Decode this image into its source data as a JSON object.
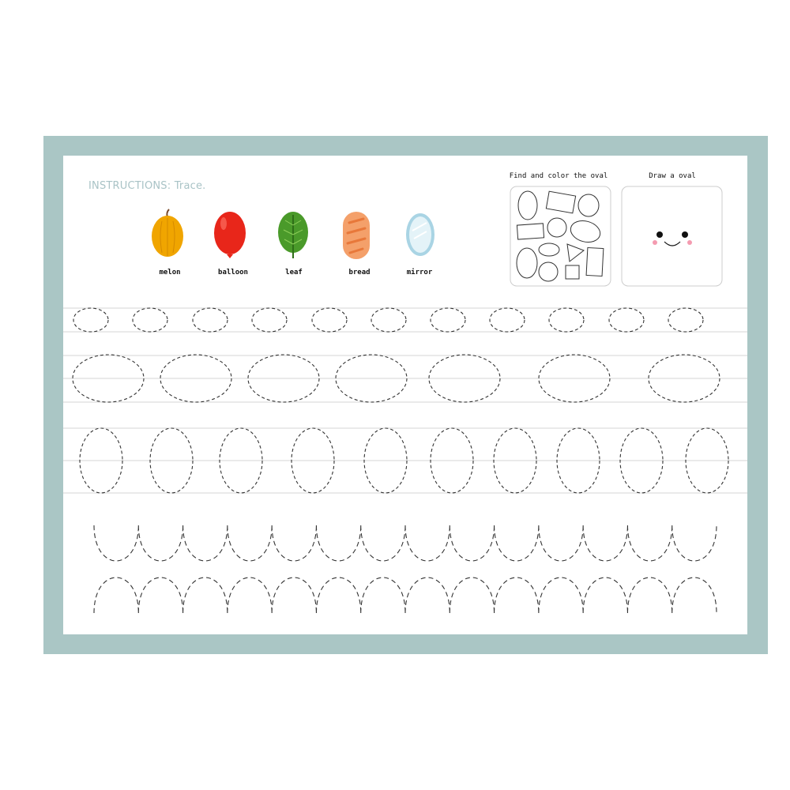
{
  "instructions": {
    "label": "INSTRUCTIONS:",
    "text": "Trace."
  },
  "pictures": [
    {
      "label": "melon",
      "icon": "melon-icon",
      "color": "#f0a500"
    },
    {
      "label": "balloon",
      "icon": "balloon-icon",
      "color": "#e8261a"
    },
    {
      "label": "leaf",
      "icon": "leaf-icon",
      "color": "#4a9a2a"
    },
    {
      "label": "bread",
      "icon": "bread-icon",
      "color": "#f4a06a"
    },
    {
      "label": "mirror",
      "icon": "mirror-icon",
      "color": "#cfe6ee"
    }
  ],
  "find_box": {
    "title": "Find and color the oval"
  },
  "draw_box": {
    "title": "Draw a oval",
    "icon": "smiley-face-icon"
  },
  "colors": {
    "frame": "#aac6c5",
    "instructions": "#a9c3c6",
    "guide_line": "#dddddd",
    "trace": "#333333"
  }
}
